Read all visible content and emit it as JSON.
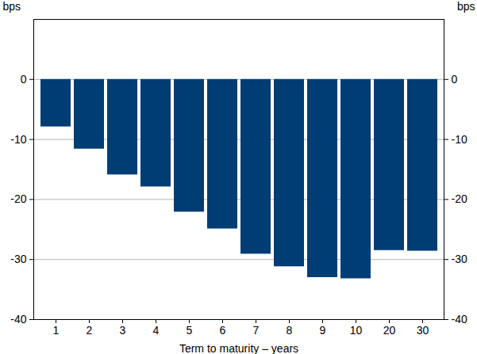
{
  "chart_data": {
    "type": "bar",
    "xlabel": "Term to maturity – years",
    "ylabel": "bps",
    "y2label": "bps",
    "categories": [
      "1",
      "2",
      "3",
      "4",
      "5",
      "6",
      "7",
      "8",
      "9",
      "10",
      "20",
      "30"
    ],
    "values": [
      -7.9,
      -11.6,
      -15.9,
      -17.9,
      -22.1,
      -24.9,
      -29.1,
      -31.2,
      -33.0,
      -33.2,
      -28.5,
      -28.6
    ],
    "color": "#003d73",
    "ylim": [
      -40,
      10
    ],
    "yticks": [
      -40,
      -30,
      -20,
      -10,
      0
    ],
    "y2lim": [
      -40,
      10
    ],
    "y2ticks": [
      -40,
      -30,
      -20,
      -10,
      0
    ],
    "grid": true
  }
}
